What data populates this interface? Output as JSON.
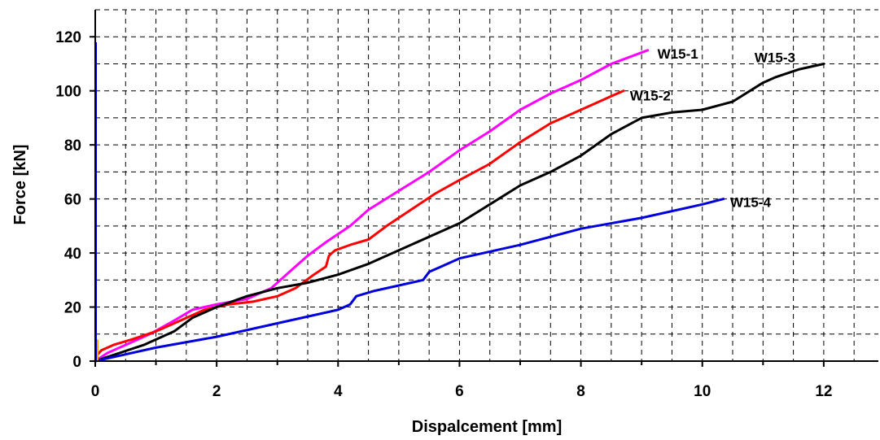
{
  "chart_data": {
    "type": "line",
    "title": "",
    "xlabel": "Dispalcement [mm]",
    "ylabel": "Force [kN]",
    "xlim": [
      0,
      12.9
    ],
    "ylim": [
      0,
      130
    ],
    "xticks": [
      0,
      2,
      4,
      6,
      8,
      10,
      12
    ],
    "yticks": [
      0,
      20,
      40,
      60,
      80,
      100,
      120
    ],
    "x_tick_labels": [
      "0",
      "2",
      "4",
      "6",
      "8",
      "10",
      "12"
    ],
    "y_tick_labels": [
      "0",
      "20",
      "40",
      "60",
      "80",
      "100",
      "120"
    ],
    "grid": true,
    "legend": "inline labels at series ends",
    "series": [
      {
        "name": "W15-1",
        "color": "#ff00ff",
        "x": [
          0,
          0.2,
          0.5,
          0.9,
          1.3,
          1.6,
          2.0,
          2.5,
          2.9,
          3.2,
          3.5,
          3.8,
          4.2,
          4.5,
          5.0,
          5.5,
          6.0,
          6.5,
          7.0,
          7.5,
          8.0,
          8.5,
          9.1
        ],
        "y": [
          0,
          3,
          6,
          10,
          15,
          19,
          21,
          23,
          27,
          33,
          39,
          44,
          50,
          56,
          63,
          70,
          78,
          85,
          93,
          99,
          104,
          110,
          115
        ]
      },
      {
        "name": "W15-2",
        "color": "#ff0000",
        "x": [
          0,
          0.02,
          0.1,
          0.3,
          0.6,
          1.0,
          1.4,
          1.8,
          2.2,
          2.6,
          3.0,
          3.3,
          3.6,
          3.8,
          3.85,
          3.95,
          4.2,
          4.5,
          4.8,
          5.2,
          5.6,
          6.0,
          6.5,
          7.0,
          7.5,
          8.0,
          8.5,
          8.7
        ],
        "y": [
          0,
          2,
          4,
          6,
          8,
          11,
          15,
          19,
          21,
          22,
          24,
          27,
          32,
          35,
          39,
          41,
          43,
          45,
          50,
          56,
          62,
          67,
          73,
          81,
          88,
          93,
          98,
          100
        ]
      },
      {
        "name": "W15-3",
        "color": "#000000",
        "x": [
          0,
          0.4,
          0.8,
          1.3,
          1.6,
          2.0,
          2.5,
          3.0,
          3.5,
          4.0,
          4.5,
          5.0,
          5.5,
          6.0,
          6.5,
          7.0,
          7.5,
          8.0,
          8.5,
          9.0,
          9.5,
          10.0,
          10.5,
          11.0,
          11.2,
          11.6,
          12.0
        ],
        "y": [
          0,
          3,
          6,
          11,
          16,
          20,
          24,
          27,
          29,
          32,
          36,
          41,
          46,
          51,
          58,
          65,
          70,
          76,
          84,
          90,
          92,
          93,
          96,
          103,
          105,
          108,
          110
        ]
      },
      {
        "name": "W15-4",
        "color": "#0000dd",
        "x": [
          0,
          1.0,
          2.0,
          3.0,
          4.0,
          4.2,
          4.3,
          4.6,
          5.0,
          5.4,
          5.5,
          5.7,
          6.0,
          7.0,
          8.0,
          9.0,
          10.0,
          10.35
        ],
        "y": [
          0,
          5,
          9,
          14,
          19,
          21,
          24,
          26,
          28,
          30,
          33,
          35,
          38,
          43,
          49,
          53,
          58,
          60
        ]
      }
    ]
  }
}
